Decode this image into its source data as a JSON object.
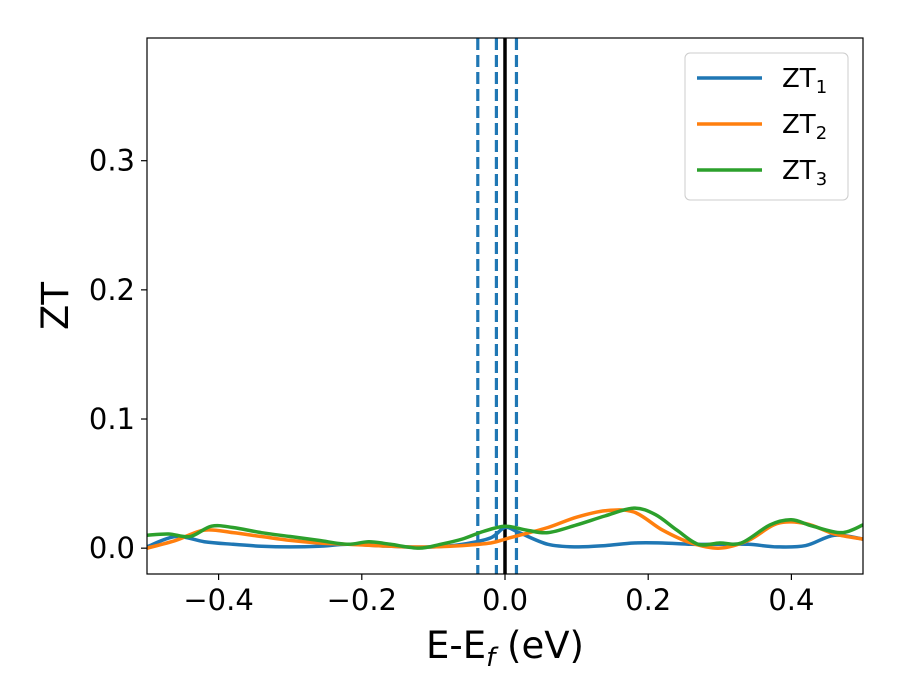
{
  "chart_data": {
    "type": "line",
    "xlabel": "E-E",
    "xlabel_sub": "f",
    "xlabel_unit": " (eV)",
    "ylabel": "ZT",
    "xlim": [
      -0.5,
      0.5
    ],
    "ylim": [
      -0.02,
      0.395
    ],
    "x_ticks": [
      -0.4,
      -0.2,
      0.0,
      0.2,
      0.4
    ],
    "x_tick_labels": [
      "−0.4",
      "−0.2",
      "0.0",
      "0.2",
      "0.4"
    ],
    "y_ticks": [
      0.0,
      0.1,
      0.2,
      0.3
    ],
    "y_tick_labels": [
      "0.0",
      "0.1",
      "0.2",
      "0.3"
    ],
    "grid": false,
    "legend_position": "top-right",
    "vertical_lines": [
      {
        "x": -0.038,
        "style": "dashed",
        "color": "#1f77b4"
      },
      {
        "x": -0.012,
        "style": "dashed",
        "color": "#1f77b4"
      },
      {
        "x": 0.0,
        "style": "solid",
        "color": "#000000"
      },
      {
        "x": 0.016,
        "style": "dashed",
        "color": "#1f77b4"
      }
    ],
    "series": [
      {
        "name": "ZT",
        "name_sub": "1",
        "color": "#1f77b4",
        "x": [
          -0.5,
          -0.46,
          -0.42,
          -0.38,
          -0.34,
          -0.3,
          -0.26,
          -0.22,
          -0.18,
          -0.14,
          -0.1,
          -0.06,
          -0.02,
          0.0,
          0.02,
          0.06,
          0.1,
          0.14,
          0.18,
          0.22,
          0.26,
          0.3,
          0.34,
          0.38,
          0.42,
          0.46,
          0.5
        ],
        "y": [
          0.001,
          0.009,
          0.005,
          0.003,
          0.0015,
          0.001,
          0.0015,
          0.003,
          0.002,
          0.001,
          0.001,
          0.003,
          0.008,
          0.016,
          0.012,
          0.003,
          0.001,
          0.002,
          0.004,
          0.004,
          0.003,
          0.003,
          0.003,
          0.001,
          0.002,
          0.01,
          0.007
        ]
      },
      {
        "name": "ZT",
        "name_sub": "2",
        "color": "#ff7f0e",
        "x": [
          -0.5,
          -0.46,
          -0.42,
          -0.38,
          -0.34,
          -0.3,
          -0.26,
          -0.22,
          -0.18,
          -0.14,
          -0.1,
          -0.06,
          -0.02,
          0.0,
          0.02,
          0.06,
          0.1,
          0.14,
          0.18,
          0.22,
          0.26,
          0.3,
          0.34,
          0.38,
          0.42,
          0.46,
          0.5
        ],
        "y": [
          0.0,
          0.006,
          0.014,
          0.012,
          0.009,
          0.006,
          0.004,
          0.003,
          0.002,
          0.001,
          0.001,
          0.002,
          0.004,
          0.007,
          0.01,
          0.016,
          0.024,
          0.029,
          0.028,
          0.014,
          0.004,
          0.0,
          0.006,
          0.019,
          0.019,
          0.011,
          0.007
        ]
      },
      {
        "name": "ZT",
        "name_sub": "3",
        "color": "#2ca02c",
        "x": [
          -0.5,
          -0.47,
          -0.44,
          -0.41,
          -0.38,
          -0.34,
          -0.3,
          -0.26,
          -0.22,
          -0.19,
          -0.16,
          -0.12,
          -0.09,
          -0.06,
          -0.03,
          0.0,
          0.03,
          0.06,
          0.1,
          0.14,
          0.18,
          0.21,
          0.24,
          0.27,
          0.3,
          0.33,
          0.37,
          0.4,
          0.43,
          0.47,
          0.5
        ],
        "y": [
          0.01,
          0.011,
          0.009,
          0.017,
          0.016,
          0.012,
          0.009,
          0.006,
          0.003,
          0.005,
          0.003,
          0.0,
          0.003,
          0.007,
          0.013,
          0.017,
          0.014,
          0.012,
          0.018,
          0.025,
          0.031,
          0.026,
          0.014,
          0.003,
          0.004,
          0.004,
          0.018,
          0.022,
          0.017,
          0.012,
          0.018
        ]
      }
    ]
  }
}
